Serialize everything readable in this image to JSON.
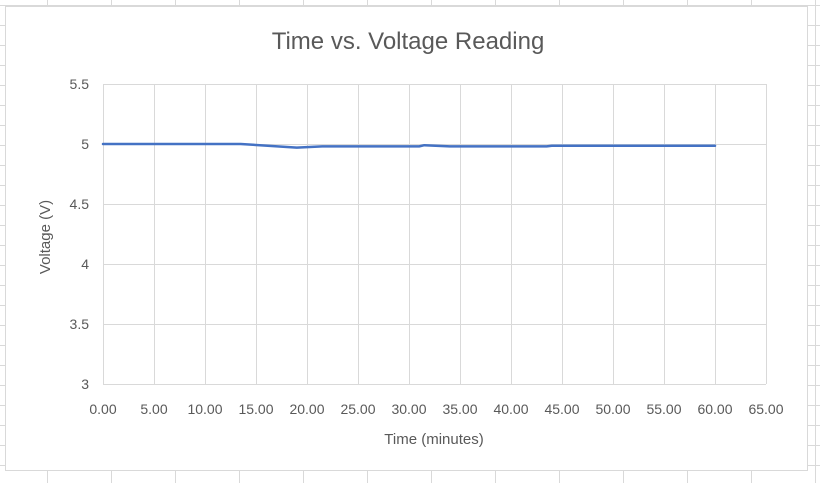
{
  "chart_data": {
    "type": "line",
    "title": "Time vs. Voltage Reading",
    "xlabel": "Time (minutes)",
    "ylabel": "Voltage (V)",
    "xlim": [
      0,
      65
    ],
    "ylim": [
      3,
      5.5
    ],
    "x_ticks": [
      0,
      5,
      10,
      15,
      20,
      25,
      30,
      35,
      40,
      45,
      50,
      55,
      60,
      65
    ],
    "x_tick_labels": [
      "0.00",
      "5.00",
      "10.00",
      "15.00",
      "20.00",
      "25.00",
      "30.00",
      "35.00",
      "40.00",
      "45.00",
      "50.00",
      "55.00",
      "60.00",
      "65.00"
    ],
    "y_ticks": [
      3,
      3.5,
      4,
      4.5,
      5,
      5.5
    ],
    "y_tick_labels": [
      "3",
      "3.5",
      "4",
      "4.5",
      "5",
      "5.5"
    ],
    "grid": true,
    "legend": "none",
    "series": [
      {
        "color": "#4472c4",
        "x": [
          0,
          13.5,
          19,
          21.5,
          31,
          31.5,
          34,
          43.5,
          44,
          60
        ],
        "y": [
          5.0,
          5.0,
          4.97,
          4.98,
          4.98,
          4.99,
          4.98,
          4.98,
          4.985,
          4.985
        ]
      }
    ]
  }
}
